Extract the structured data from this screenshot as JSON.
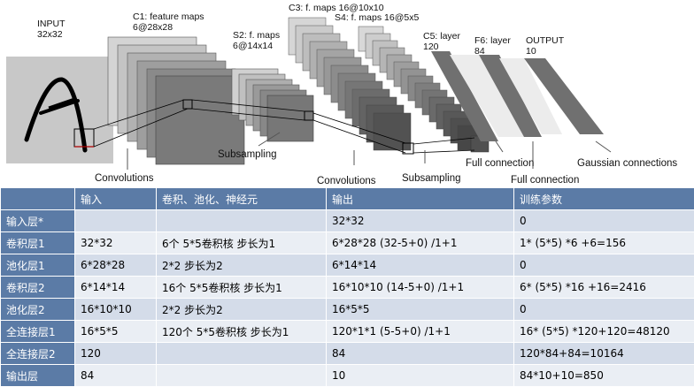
{
  "diagram": {
    "labels": {
      "input": [
        "INPUT",
        "32x32"
      ],
      "c1": [
        "C1: feature maps",
        "6@28x28"
      ],
      "s2": [
        "S2: f. maps",
        "6@14x14"
      ],
      "c3": [
        "C3: f. maps 16@10x10"
      ],
      "s4": [
        "S4: f. maps 16@5x5"
      ],
      "c5": [
        "C5: layer",
        "120"
      ],
      "f6": [
        "F6: layer",
        "84"
      ],
      "output": [
        "OUTPUT",
        "10"
      ]
    },
    "captions": {
      "conv1": "Convolutions",
      "subsampling1": "Subsampling",
      "conv2": "Convolutions",
      "subsampling2": "Subsampling",
      "full1": "Full connection",
      "full2": "Full connection",
      "gaussian": "Gaussian connections"
    }
  },
  "table": {
    "headers": [
      "",
      "输入",
      "卷积、池化、神经元",
      "输出",
      "训练参数"
    ],
    "rows": [
      [
        "输入层*",
        "",
        "",
        "32*32",
        "0"
      ],
      [
        "卷积层1",
        "32*32",
        "6个 5*5卷积核 步长为1",
        "6*28*28 (32-5+0) /1+1",
        "1* (5*5) *6 +6=156"
      ],
      [
        "池化层1",
        "6*28*28",
        "2*2 步长为2",
        "6*14*14",
        "0"
      ],
      [
        "卷积层2",
        "6*14*14",
        "16个 5*5卷积核 步长为1",
        "16*10*10 (14-5+0) /1+1",
        "6* (5*5) *16 +16=2416"
      ],
      [
        "池化层2",
        "16*10*10",
        "2*2 步长为2",
        "16*5*5",
        "0"
      ],
      [
        "全连接层1",
        "16*5*5",
        "120个 5*5卷积核 步长为1",
        "120*1*1 (5-5+0) /1+1",
        "16* (5*5) *120+120=48120"
      ],
      [
        "全连接层2",
        "120",
        "",
        "84",
        "120*84+84=10164"
      ],
      [
        "输出层",
        "84",
        "",
        "10",
        "84*10+10=850"
      ]
    ]
  }
}
